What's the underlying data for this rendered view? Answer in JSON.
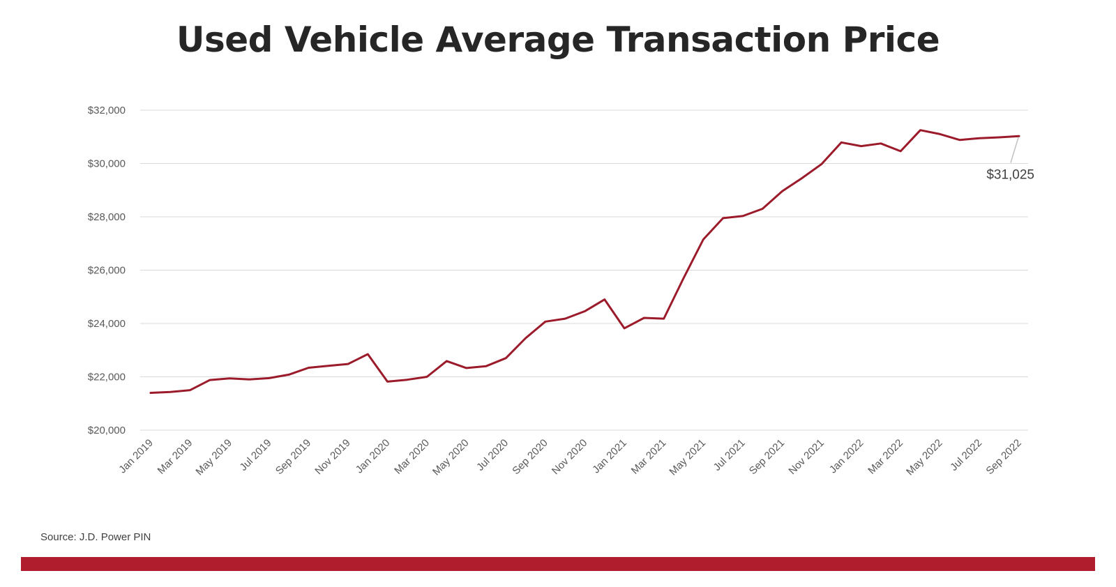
{
  "title": "Used Vehicle Average Transaction Price",
  "source": "Source: J.D. Power PIN",
  "colors": {
    "series": "#9b1b2b",
    "footer_bar": "#b01e2d",
    "grid": "#d9d9d9",
    "text": "#595959"
  },
  "chart_data": {
    "type": "line",
    "title": "Used Vehicle Average Transaction Price",
    "xlabel": "",
    "ylabel": "",
    "ylim": [
      20000,
      32000
    ],
    "y_ticks": [
      "$20,000",
      "$22,000",
      "$24,000",
      "$26,000",
      "$28,000",
      "$30,000",
      "$32,000"
    ],
    "y_tick_values": [
      20000,
      22000,
      24000,
      26000,
      28000,
      30000,
      32000
    ],
    "grid": "horizontal",
    "x": [
      "Jan 2019",
      "Feb 2019",
      "Mar 2019",
      "Apr 2019",
      "May 2019",
      "Jun 2019",
      "Jul 2019",
      "Aug 2019",
      "Sep 2019",
      "Oct 2019",
      "Nov 2019",
      "Dec 2019",
      "Jan 2020",
      "Feb 2020",
      "Mar 2020",
      "Apr 2020",
      "May 2020",
      "Jun 2020",
      "Jul 2020",
      "Aug 2020",
      "Sep 2020",
      "Oct 2020",
      "Nov 2020",
      "Dec 2020",
      "Jan 2021",
      "Feb 2021",
      "Mar 2021",
      "Apr 2021",
      "May 2021",
      "Jun 2021",
      "Jul 2021",
      "Aug 2021",
      "Sep 2021",
      "Oct 2021",
      "Nov 2021",
      "Dec 2021",
      "Jan 2022",
      "Feb 2022",
      "Mar 2022",
      "Apr 2022",
      "May 2022",
      "Jun 2022",
      "Jul 2022",
      "Aug 2022",
      "Sep 2022"
    ],
    "x_tick_labels": [
      "Jan 2019",
      "Mar 2019",
      "May 2019",
      "Jul 2019",
      "Sep 2019",
      "Nov 2019",
      "Jan 2020",
      "Mar 2020",
      "May 2020",
      "Jul 2020",
      "Sep 2020",
      "Nov 2020",
      "Jan 2021",
      "Mar 2021",
      "May 2021",
      "Jul 2021",
      "Sep 2021",
      "Nov 2021",
      "Jan 2022",
      "Mar 2022",
      "May 2022",
      "Jul 2022",
      "Sep 2022"
    ],
    "series": [
      {
        "values": [
          21400,
          21430,
          21500,
          21880,
          21940,
          21900,
          21950,
          22080,
          22340,
          22410,
          22480,
          22850,
          21820,
          21890,
          22000,
          22590,
          22330,
          22400,
          22700,
          23450,
          24070,
          24180,
          24460,
          24900,
          23820,
          24210,
          24180,
          25700,
          27150,
          27950,
          28030,
          28300,
          28960,
          29450,
          29980,
          30790,
          30650,
          30750,
          30460,
          31250,
          31100,
          30880,
          30950,
          30980,
          31025
        ]
      }
    ],
    "annotations": [
      {
        "x": "Sep 2022",
        "text": "$31,025"
      }
    ]
  }
}
